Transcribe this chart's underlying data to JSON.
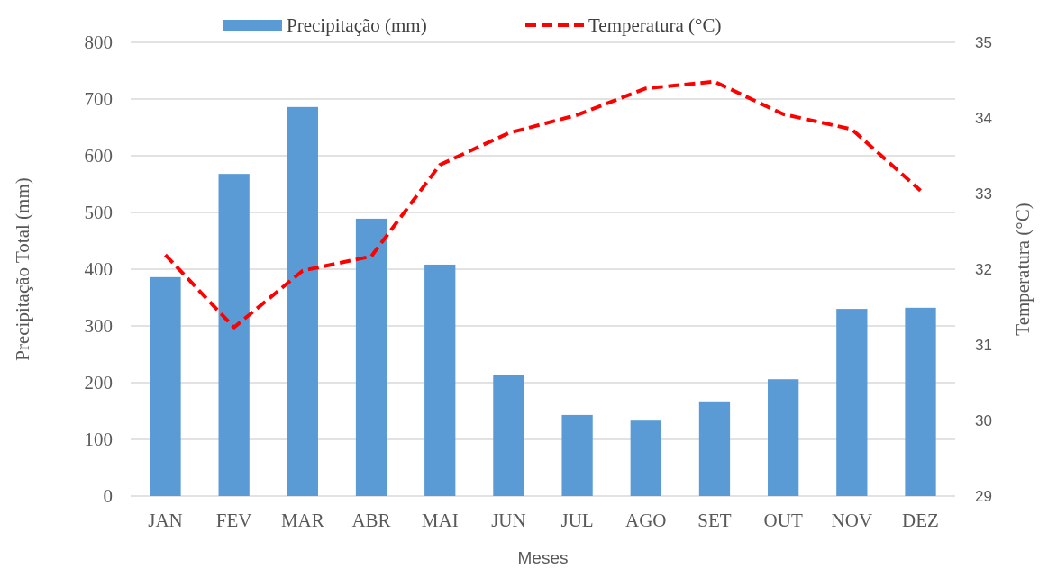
{
  "chart_data": {
    "type": "bar",
    "xlabel": "Meses",
    "ylabel": "Precipitação Total (mm)",
    "y2label": "Temperatura (°C)",
    "categories": [
      "JAN",
      "FEV",
      "MAR",
      "ABR",
      "MAI",
      "JUN",
      "JUL",
      "AGO",
      "SET",
      "OUT",
      "NOV",
      "DEZ"
    ],
    "series": [
      {
        "name": "Precipitação (mm)",
        "color": "#5b9bd5",
        "values": [
          386,
          568,
          686,
          489,
          408,
          214,
          143,
          133,
          167,
          206,
          330,
          332
        ]
      },
      {
        "name": "Temperatura (°C)",
        "type": "line",
        "axis": "y2",
        "color": "#ff0000",
        "line_style": "dashed",
        "values": [
          32.19,
          31.23,
          31.98,
          32.17,
          33.38,
          33.8,
          34.04,
          34.39,
          34.48,
          34.05,
          33.85,
          33.04
        ]
      }
    ],
    "ylim": [
      0,
      800
    ],
    "yticks": [
      0,
      100,
      200,
      300,
      400,
      500,
      600,
      700,
      800
    ],
    "y2lim": [
      29,
      35
    ],
    "y2ticks": [
      29,
      30,
      31,
      32,
      33,
      34,
      35
    ],
    "grid": "y",
    "legend": "top"
  }
}
